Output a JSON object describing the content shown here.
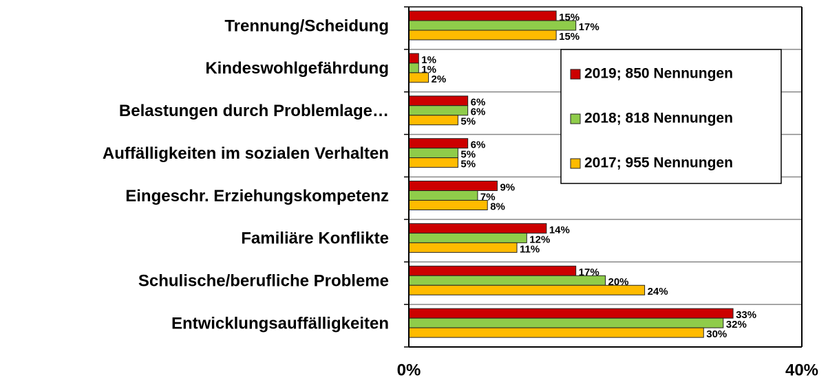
{
  "chart_data": {
    "type": "hbar",
    "categories": [
      "Trennung/Scheidung",
      "Kindeswohlgefährdung",
      "Belastungen durch Problemlage…",
      "Auffälligkeiten im sozialen Verhalten",
      "Eingeschr. Erziehungskompetenz",
      "Familiäre Konflikte",
      "Schulische/berufliche Probleme",
      "Entwicklungsauffälligkeiten"
    ],
    "series": [
      {
        "name": "2019; 850 Nennungen",
        "color": "#cc0000",
        "values": [
          15,
          1,
          6,
          6,
          9,
          14,
          17,
          33
        ],
        "value_labels": [
          "15%",
          "1%",
          "6%",
          "6%",
          "9%",
          "14%",
          "17%",
          "33%"
        ]
      },
      {
        "name": "2018; 818 Nennungen",
        "color": "#8fcc4a",
        "values": [
          17,
          1,
          6,
          5,
          7,
          12,
          20,
          32
        ],
        "value_labels": [
          "17%",
          "1%",
          "6%",
          "5%",
          "7%",
          "12%",
          "20%",
          "32%"
        ]
      },
      {
        "name": "2017; 955 Nennungen",
        "color": "#ffbb00",
        "values": [
          15,
          2,
          5,
          5,
          8,
          11,
          24,
          30
        ],
        "value_labels": [
          "15%",
          "2%",
          "5%",
          "5%",
          "8%",
          "11%",
          "24%",
          "30%"
        ]
      }
    ],
    "xlim": [
      0,
      40
    ],
    "xticks": [
      {
        "value": 0,
        "label": "0%"
      },
      {
        "value": 40,
        "label": "40%"
      }
    ],
    "grid": true
  }
}
